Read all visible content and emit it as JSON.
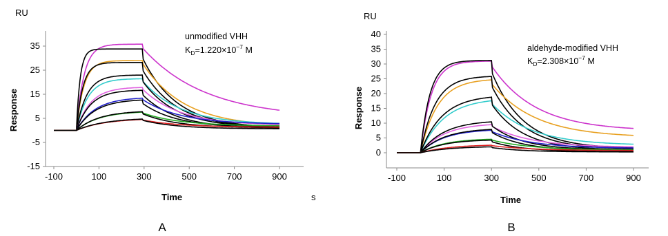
{
  "figure": {
    "panel_labels": [
      "A",
      "B"
    ],
    "secondary_time_unit": "s"
  },
  "chart_data": [
    {
      "type": "line",
      "panel": "A",
      "unit_label": "RU",
      "xlabel": "Time",
      "ylabel": "Response",
      "annotation_line1": "unmodified VHH",
      "annotation_kd": "1.220×10",
      "annotation_exp": "−7",
      "annotation_unit": "M",
      "xlim": [
        -100,
        950
      ],
      "ylim": [
        -15,
        40
      ],
      "xticks": [
        -100,
        100,
        300,
        500,
        700,
        900
      ],
      "yticks": [
        -15,
        -5,
        5,
        15,
        25,
        35
      ],
      "association_end": 295,
      "dissociation_end": 900,
      "injection_start": 0,
      "series": [
        {
          "color": "#cc33cc",
          "plateau": 35.8,
          "rise": 0.03,
          "decay": 0.0012,
          "floor": 0.15
        },
        {
          "color": "#000000",
          "plateau": 33.8,
          "rise": 0.06,
          "decay": 0.0022,
          "floor": 0.03
        },
        {
          "color": "#e8a020",
          "plateau": 29.0,
          "rise": 0.03,
          "decay": 0.0018,
          "floor": 0.05
        },
        {
          "color": "#000000",
          "plateau": 28.2,
          "rise": 0.035,
          "decay": 0.0022,
          "floor": 0.04
        },
        {
          "color": "#33cccc",
          "plateau": 21.5,
          "rise": 0.02,
          "decay": 0.002,
          "floor": 0.12
        },
        {
          "color": "#000000",
          "plateau": 23.0,
          "rise": 0.022,
          "decay": 0.0022,
          "floor": 0.05
        },
        {
          "color": "#e060e0",
          "plateau": 18.0,
          "rise": 0.016,
          "decay": 0.002,
          "floor": 0.12
        },
        {
          "color": "#000000",
          "plateau": 16.8,
          "rise": 0.016,
          "decay": 0.0022,
          "floor": 0.05
        },
        {
          "color": "#2222cc",
          "plateau": 13.8,
          "rise": 0.012,
          "decay": 0.002,
          "floor": 0.2
        },
        {
          "color": "#000000",
          "plateau": 13.0,
          "rise": 0.012,
          "decay": 0.0022,
          "floor": 0.1
        },
        {
          "color": "#22aa22",
          "plateau": 8.0,
          "rise": 0.01,
          "decay": 0.002,
          "floor": 0.25
        },
        {
          "color": "#000000",
          "plateau": 8.2,
          "rise": 0.01,
          "decay": 0.0022,
          "floor": 0.15
        },
        {
          "color": "#dd2222",
          "plateau": 5.0,
          "rise": 0.008,
          "decay": 0.002,
          "floor": 0.3
        },
        {
          "color": "#000000",
          "plateau": 5.2,
          "rise": 0.008,
          "decay": 0.0022,
          "floor": 0.15
        }
      ]
    },
    {
      "type": "line",
      "panel": "B",
      "unit_label": "RU",
      "xlabel": "Time",
      "ylabel": "Response",
      "annotation_line1": "aldehyde-modified VHH",
      "annotation_kd": "2.308×10",
      "annotation_exp": "−7",
      "annotation_unit": "M",
      "xlim": [
        -100,
        950
      ],
      "ylim": [
        -5,
        40
      ],
      "xticks": [
        -100,
        100,
        300,
        500,
        700,
        900
      ],
      "yticks": [
        0,
        5,
        10,
        15,
        20,
        25,
        30,
        35,
        40
      ],
      "association_end": 300,
      "dissociation_end": 900,
      "injection_start": 0,
      "series": [
        {
          "color": "#cc33cc",
          "plateau": 31.0,
          "rise": 0.022,
          "decay": 0.0018,
          "floor": 0.25
        },
        {
          "color": "#000000",
          "plateau": 31.2,
          "rise": 0.025,
          "decay": 0.0025,
          "floor": 0.05
        },
        {
          "color": "#e8a020",
          "plateau": 25.0,
          "rise": 0.014,
          "decay": 0.0018,
          "floor": 0.22
        },
        {
          "color": "#000000",
          "plateau": 26.0,
          "rise": 0.016,
          "decay": 0.0025,
          "floor": 0.05
        },
        {
          "color": "#33cccc",
          "plateau": 18.5,
          "rise": 0.01,
          "decay": 0.002,
          "floor": 0.15
        },
        {
          "color": "#000000",
          "plateau": 19.5,
          "rise": 0.011,
          "decay": 0.0025,
          "floor": 0.05
        },
        {
          "color": "#e060e0",
          "plateau": 10.0,
          "rise": 0.01,
          "decay": 0.002,
          "floor": 0.2
        },
        {
          "color": "#000000",
          "plateau": 11.0,
          "rise": 0.01,
          "decay": 0.0025,
          "floor": 0.1
        },
        {
          "color": "#2222cc",
          "plateau": 8.0,
          "rise": 0.01,
          "decay": 0.002,
          "floor": 0.2
        },
        {
          "color": "#000000",
          "plateau": 8.3,
          "rise": 0.01,
          "decay": 0.0025,
          "floor": 0.1
        },
        {
          "color": "#22aa22",
          "plateau": 4.8,
          "rise": 0.01,
          "decay": 0.002,
          "floor": 0.2
        },
        {
          "color": "#000000",
          "plateau": 4.5,
          "rise": 0.01,
          "decay": 0.0025,
          "floor": 0.1
        },
        {
          "color": "#dd2222",
          "plateau": 2.8,
          "rise": 0.008,
          "decay": 0.002,
          "floor": 0.3
        },
        {
          "color": "#000000",
          "plateau": 2.2,
          "rise": 0.008,
          "decay": 0.0025,
          "floor": 0.15
        }
      ]
    }
  ]
}
